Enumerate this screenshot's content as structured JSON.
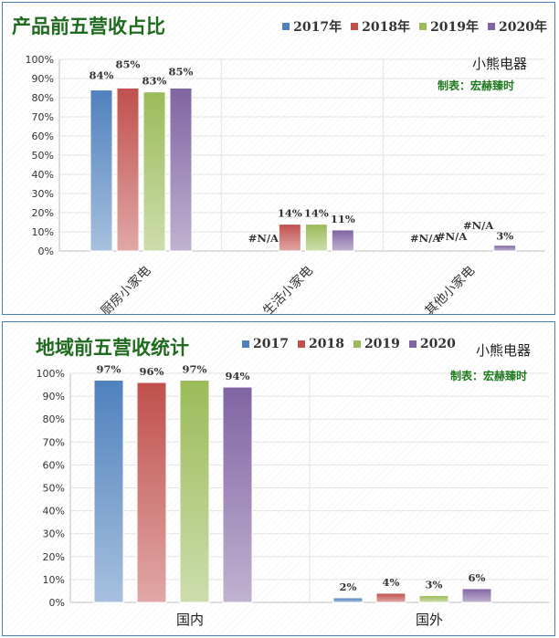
{
  "colors": {
    "s2017": "#4f81bd",
    "s2018": "#c0504d",
    "s2019": "#9bbb59",
    "s2020": "#8064a2",
    "title": "#1f6b1f",
    "border": "#4a7fb5"
  },
  "chart_data": [
    {
      "type": "bar",
      "title": "产品前五营收占比",
      "brand": "小熊电器",
      "maker": "制表：宏赫臻时",
      "categories": [
        "厨房小家电",
        "生活小家电",
        "其他小家电"
      ],
      "series": [
        {
          "name": "2017年",
          "values": [
            0.84,
            null,
            null
          ],
          "labels": [
            "84%",
            "#N/A",
            "#N/A"
          ]
        },
        {
          "name": "2018年",
          "values": [
            0.85,
            0.14,
            null
          ],
          "labels": [
            "85%",
            "14%",
            "#N/A"
          ]
        },
        {
          "name": "2019年",
          "values": [
            0.83,
            0.14,
            null
          ],
          "labels": [
            "83%",
            "14%",
            "#N/A"
          ]
        },
        {
          "name": "2020年",
          "values": [
            0.85,
            0.11,
            0.03
          ],
          "labels": [
            "85%",
            "11%",
            "3%"
          ]
        }
      ],
      "yticks": [
        "0%",
        "10%",
        "20%",
        "30%",
        "40%",
        "50%",
        "60%",
        "70%",
        "80%",
        "90%",
        "100%"
      ],
      "ylim": [
        0,
        1
      ],
      "legend": "top-right",
      "grid": true
    },
    {
      "type": "bar",
      "title": "地域前五营收统计",
      "brand": "小熊电器",
      "maker": "制表：宏赫臻时",
      "categories": [
        "国内",
        "国外"
      ],
      "series": [
        {
          "name": "2017",
          "values": [
            0.97,
            0.02
          ],
          "labels": [
            "97%",
            "2%"
          ]
        },
        {
          "name": "2018",
          "values": [
            0.96,
            0.04
          ],
          "labels": [
            "96%",
            "4%"
          ]
        },
        {
          "name": "2019",
          "values": [
            0.97,
            0.03
          ],
          "labels": [
            "97%",
            "3%"
          ]
        },
        {
          "name": "2020",
          "values": [
            0.94,
            0.06
          ],
          "labels": [
            "94%",
            "6%"
          ]
        }
      ],
      "yticks": [
        "0%",
        "10%",
        "20%",
        "30%",
        "40%",
        "50%",
        "60%",
        "70%",
        "80%",
        "90%",
        "100%"
      ],
      "ylim": [
        0,
        1
      ],
      "legend": "top",
      "grid": true
    }
  ]
}
